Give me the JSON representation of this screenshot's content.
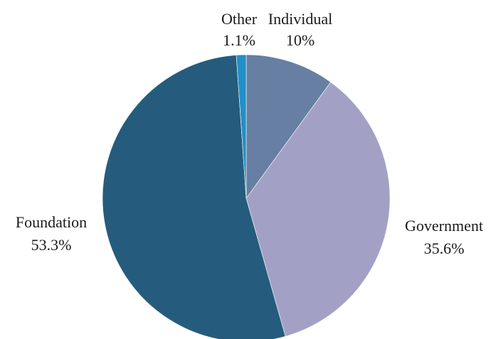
{
  "chart_data": {
    "type": "pie",
    "title": "",
    "start_angle_deg": 0,
    "direction": "clockwise",
    "slices": [
      {
        "label": "Individual",
        "display_value": "10%",
        "value": 10.0,
        "color": "#667fa3"
      },
      {
        "label": "Government",
        "display_value": "35.6%",
        "value": 35.6,
        "color": "#a2a1c5"
      },
      {
        "label": "Foundation",
        "display_value": "53.3%",
        "value": 53.3,
        "color": "#255c7d"
      },
      {
        "label": "Other",
        "display_value": "1.1%",
        "value": 1.1,
        "color": "#2190c8"
      }
    ]
  }
}
